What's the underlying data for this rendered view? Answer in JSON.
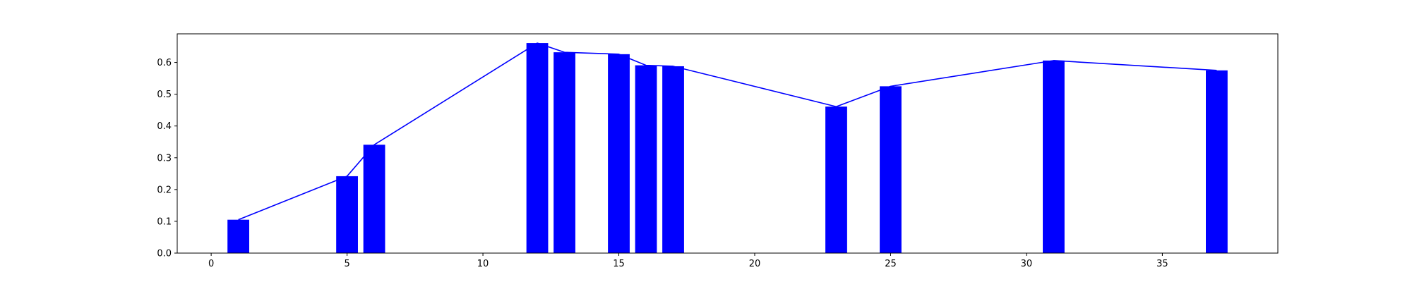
{
  "chart_data": {
    "type": "bar",
    "title": "",
    "xlabel": "",
    "ylabel": "",
    "xlim": [
      -1.25,
      39.25
    ],
    "ylim": [
      0,
      0.69
    ],
    "grid": false,
    "xticks": [
      0,
      5,
      10,
      15,
      20,
      25,
      30,
      35
    ],
    "yticks": [
      0.0,
      0.1,
      0.2,
      0.3,
      0.4,
      0.5,
      0.6
    ],
    "ytick_labels": [
      "0.0",
      "0.1",
      "0.2",
      "0.3",
      "0.4",
      "0.5",
      "0.6"
    ],
    "bar_width": 0.8,
    "color": "#0000ff",
    "series": [
      {
        "type": "bar",
        "x": [
          1,
          5,
          6,
          12,
          13,
          15,
          16,
          17,
          23,
          25,
          31,
          37
        ],
        "values": [
          0.105,
          0.242,
          0.341,
          0.661,
          0.632,
          0.626,
          0.591,
          0.588,
          0.461,
          0.525,
          0.606,
          0.575
        ]
      },
      {
        "type": "line",
        "x": [
          1,
          5,
          6,
          12,
          13,
          15,
          16,
          17,
          23,
          25,
          31,
          37
        ],
        "values": [
          0.105,
          0.242,
          0.341,
          0.661,
          0.632,
          0.626,
          0.591,
          0.588,
          0.461,
          0.525,
          0.606,
          0.575
        ]
      }
    ]
  }
}
